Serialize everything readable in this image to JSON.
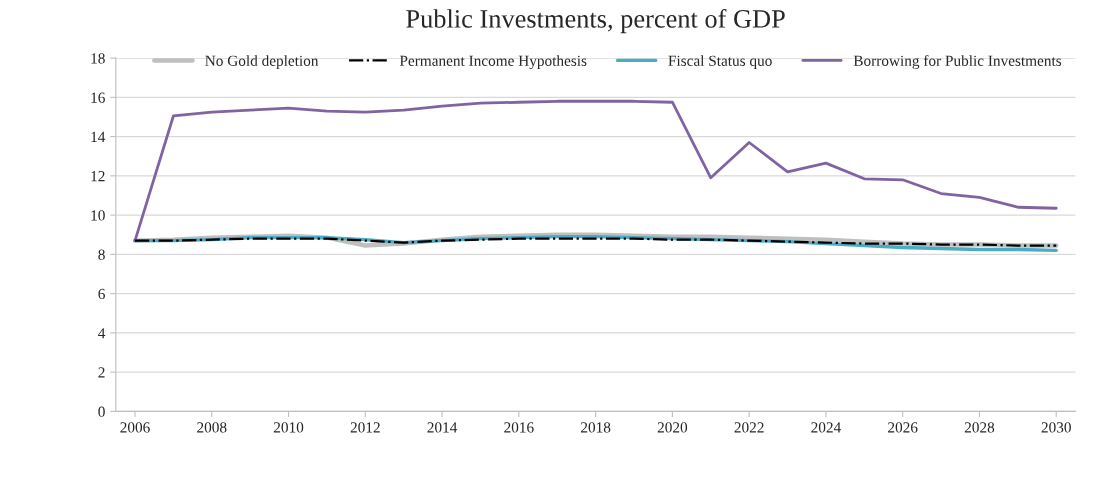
{
  "chart_data": {
    "type": "line",
    "title": "Public Investments, percent of GDP",
    "x": [
      2006,
      2007,
      2008,
      2009,
      2010,
      2011,
      2012,
      2013,
      2014,
      2015,
      2016,
      2017,
      2018,
      2019,
      2020,
      2021,
      2022,
      2023,
      2024,
      2025,
      2026,
      2027,
      2028,
      2029,
      2030
    ],
    "xlim": [
      2005.5,
      2030.5
    ],
    "xticks": [
      2006,
      2008,
      2010,
      2012,
      2014,
      2016,
      2018,
      2020,
      2022,
      2024,
      2026,
      2028,
      2030
    ],
    "ylim": [
      0,
      18
    ],
    "yticks": [
      0,
      2,
      4,
      6,
      8,
      10,
      12,
      14,
      16,
      18
    ],
    "grid": "y",
    "legend": "top right",
    "marker": "none",
    "series": [
      {
        "name": "No Gold depletion",
        "color": "#bfbfbf",
        "line_style": "solid",
        "values": [
          8.7,
          8.75,
          8.85,
          8.9,
          8.95,
          8.85,
          8.45,
          8.55,
          8.75,
          8.9,
          8.95,
          9.0,
          9.0,
          8.95,
          8.9,
          8.9,
          8.85,
          8.8,
          8.75,
          8.65,
          8.55,
          8.5,
          8.5,
          8.45,
          8.45
        ]
      },
      {
        "name": "Permanent Income Hypothesis",
        "color": "#000000",
        "line_style": "dashdot",
        "values": [
          8.7,
          8.7,
          8.75,
          8.8,
          8.8,
          8.8,
          8.7,
          8.6,
          8.7,
          8.75,
          8.8,
          8.8,
          8.8,
          8.8,
          8.75,
          8.75,
          8.7,
          8.65,
          8.6,
          8.55,
          8.55,
          8.5,
          8.5,
          8.45,
          8.45
        ]
      },
      {
        "name": "Fiscal Status quo",
        "color": "#4bacc6",
        "line_style": "solid",
        "values": [
          8.7,
          8.7,
          8.75,
          8.85,
          8.85,
          8.85,
          8.75,
          8.6,
          8.7,
          8.8,
          8.85,
          8.9,
          8.9,
          8.85,
          8.8,
          8.75,
          8.7,
          8.65,
          8.55,
          8.45,
          8.35,
          8.3,
          8.25,
          8.25,
          8.2
        ]
      },
      {
        "name": "Borrowing for Public Investments",
        "color": "#8064a2",
        "line_style": "solid",
        "values": [
          8.7,
          15.05,
          15.25,
          15.35,
          15.45,
          15.3,
          15.25,
          15.35,
          15.55,
          15.7,
          15.75,
          15.8,
          15.8,
          15.8,
          15.75,
          11.9,
          13.7,
          12.2,
          12.65,
          11.85,
          11.8,
          11.1,
          10.9,
          10.4,
          10.35
        ]
      }
    ]
  }
}
